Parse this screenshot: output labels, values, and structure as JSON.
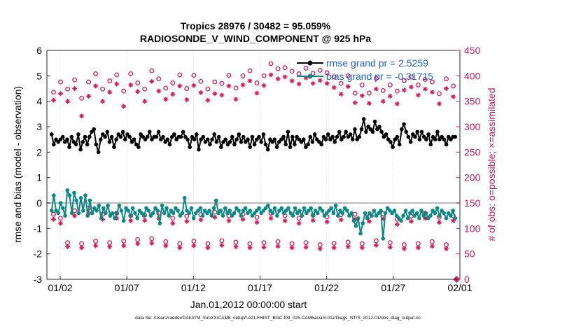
{
  "chart_data": {
    "type": "line",
    "title_line1": "Tropics 28976 / 30482 = 95.059%",
    "title_line2": "RADIOSONDE_V_WIND_COMPONENT @ 925 hPa",
    "xlabel": "Jan.01,2012 00:00:00 start",
    "ylabel_left": "rmse and bias (model - observation)",
    "ylabel_right": "# of obs: o=possible; ×=assimilated",
    "xlim": [
      0.5,
      31.5
    ],
    "ylim_left": [
      -3,
      6
    ],
    "ylim_right": [
      0,
      450
    ],
    "x_ticks": [
      1.5,
      6.5,
      11.5,
      16.5,
      21.5,
      26.5,
      31.5
    ],
    "x_tick_labels": [
      "01/02",
      "01/07",
      "01/12",
      "01/17",
      "01/22",
      "01/27",
      "02/01"
    ],
    "y_ticks_left": [
      -3,
      -2,
      -1,
      0,
      1,
      2,
      3,
      4,
      5,
      6
    ],
    "y_tick_labels_left": [
      "-3",
      "-2",
      "-1",
      "0",
      "1",
      "2",
      "3",
      "4",
      "5",
      "6"
    ],
    "y_ticks_right": [
      0,
      50,
      100,
      150,
      200,
      250,
      300,
      350,
      400,
      450
    ],
    "y_tick_labels_right": [
      "0",
      "50",
      "100",
      "150",
      "200",
      "250",
      "300",
      "350",
      "400",
      "450"
    ],
    "legend": [
      {
        "label": "rmse grand pr = 2.5259",
        "color": "#000000"
      },
      {
        "label": "bias grand pr = -0.31715",
        "color": "#0b8a85"
      }
    ],
    "colors": {
      "rmse": "#000000",
      "bias": "#0b8a85",
      "obs": "#d2195a",
      "text_right": "#c2185b",
      "zero_line": "#bbbbbb"
    },
    "rmse": [
      2.7,
      2.3,
      2.5,
      2.4,
      2.5,
      2.6,
      2.4,
      2.5,
      2.2,
      2.6,
      2.4,
      2.3,
      2.7,
      2.1,
      2.4,
      2.6,
      2.3,
      2.6,
      2.8,
      2.9,
      2.3,
      2.0,
      2.5,
      2.7,
      2.6,
      2.8,
      2.4,
      2.6,
      2.2,
      2.5,
      2.7,
      2.6,
      2.8,
      2.5,
      2.7,
      2.6,
      2.4,
      2.5,
      2.3,
      2.2,
      2.7,
      2.6,
      2.5,
      2.6,
      2.8,
      2.5,
      2.6,
      2.6,
      2.8,
      2.5,
      2.6,
      2.4,
      2.5,
      2.3,
      2.6,
      2.7,
      2.5,
      2.6,
      2.6,
      2.8,
      2.6,
      2.5,
      2.2,
      2.6,
      2.5,
      2.7,
      2.1,
      2.5,
      2.6,
      2.4,
      2.5,
      2.3,
      2.5,
      2.7,
      2.4,
      2.6,
      2.2,
      2.4,
      2.5,
      2.3,
      2.4,
      2.6,
      2.3,
      2.5,
      2.7,
      2.4,
      2.6,
      2.4,
      2.5,
      2.2,
      2.6,
      2.3,
      2.5,
      2.6,
      2.4,
      2.7,
      2.3,
      2.1,
      2.5,
      2.4,
      2.5,
      2.2,
      2.4,
      2.5,
      2.6,
      2.3,
      2.8,
      2.2,
      2.6,
      2.3,
      2.6,
      2.5,
      2.4,
      2.5,
      2.2,
      2.3,
      2.6,
      2.4,
      2.7,
      2.5,
      2.4,
      2.3,
      2.6,
      2.5,
      2.7,
      2.5,
      2.6,
      2.4,
      2.6,
      2.8,
      2.5,
      2.6,
      2.8,
      2.6,
      2.7,
      2.5,
      2.9,
      2.5,
      2.6,
      2.9,
      3.3,
      2.8,
      3.0,
      2.9,
      2.8,
      3.2,
      2.9,
      3.0,
      2.8,
      2.6,
      2.7,
      2.5,
      2.4,
      2.2,
      2.5,
      2.6,
      2.3,
      2.9,
      3.1,
      2.8,
      2.6,
      2.4,
      2.7,
      2.6,
      2.8,
      2.5,
      2.8,
      2.6,
      2.5,
      2.7,
      2.3,
      2.6,
      2.5,
      2.8,
      2.5,
      2.6,
      2.5,
      2.3,
      2.6,
      2.5,
      2.6,
      2.6
    ],
    "bias": [
      -0.3,
      0.3,
      -0.3,
      -0.4,
      0.0,
      -0.2,
      -0.5,
      0.5,
      0.3,
      -0.4,
      0.4,
      0.1,
      -0.4,
      0.2,
      -0.3,
      0.3,
      -0.5,
      0.1,
      -0.4,
      -0.2,
      -0.3,
      -0.1,
      -0.6,
      -0.2,
      -0.4,
      -0.1,
      -0.5,
      -0.4,
      -0.6,
      -0.4,
      -0.1,
      -0.3,
      -0.7,
      -0.2,
      -0.3,
      -0.5,
      -0.2,
      -0.4,
      -0.6,
      -0.3,
      -0.4,
      -0.5,
      -0.2,
      -0.3,
      -0.5,
      -0.4,
      -0.2,
      -0.3,
      -0.8,
      -0.1,
      -0.4,
      -0.2,
      -0.5,
      -0.3,
      -0.4,
      -0.2,
      -0.3,
      -0.5,
      -0.4,
      0.2,
      -0.3,
      -0.4,
      -0.2,
      -0.6,
      -0.4,
      -0.3,
      -0.2,
      -0.5,
      -0.3,
      -0.4,
      -0.3,
      -0.5,
      -0.2,
      0.1,
      -0.4,
      -0.3,
      -0.5,
      -0.2,
      -0.4,
      -0.3,
      -0.5,
      -0.4,
      -0.2,
      -0.3,
      -0.5,
      -0.3,
      -0.2,
      -0.4,
      -0.3,
      -0.5,
      -0.4,
      -0.3,
      -0.2,
      -0.4,
      -0.3,
      -0.2,
      -0.1,
      -0.3,
      -0.4,
      -0.2,
      -0.5,
      -0.3,
      -0.2,
      -0.4,
      -0.3,
      -0.2,
      -0.4,
      -0.5,
      -0.2,
      -0.4,
      -0.3,
      -0.5,
      -0.2,
      -0.4,
      -0.3,
      -0.2,
      -0.5,
      -0.3,
      -0.4,
      -0.2,
      -0.3,
      -0.5,
      -0.4,
      -0.3,
      -0.2,
      -0.4,
      -0.1,
      -0.5,
      -0.3,
      -0.4,
      -0.2,
      -0.3,
      -0.5,
      -0.4,
      -0.7,
      -0.9,
      -0.6,
      -1.2,
      -0.8,
      -0.4,
      -0.6,
      -0.4,
      -0.5,
      -0.3,
      -0.5,
      -0.4,
      -0.3,
      -1.4,
      -0.4,
      -0.2,
      -0.3,
      -0.4,
      -0.3,
      -0.5,
      -0.6,
      -0.7,
      -0.5,
      -0.3,
      -0.6,
      -0.4,
      -0.3,
      -0.5,
      -0.4,
      -0.6,
      -0.3,
      -0.5,
      -0.4,
      -0.6,
      -0.5,
      -0.3,
      -0.4,
      -0.2,
      -0.5,
      -0.3,
      -0.4,
      -0.6,
      -0.4,
      -0.5,
      -0.3,
      -0.6
    ],
    "obs_possible_high": [
      368,
      388,
      374,
      392,
      356,
      388,
      404,
      374,
      390,
      402,
      370,
      404,
      386,
      374,
      410,
      394,
      376,
      386,
      402,
      375,
      401,
      389,
      374,
      388,
      385,
      401,
      376,
      400,
      410,
      386,
      400,
      424,
      414,
      416,
      409,
      404,
      415,
      405,
      411,
      406,
      398,
      385,
      400,
      366,
      382,
      366,
      395,
      371,
      382,
      370,
      391,
      398,
      382,
      393,
      388,
      365,
      394,
      380
    ],
    "obs_assim_high": [
      352,
      365,
      350,
      375,
      321,
      360,
      380,
      350,
      368,
      384,
      340,
      382,
      369,
      350,
      389,
      370,
      354,
      364,
      380,
      353,
      381,
      367,
      352,
      365,
      362,
      380,
      354,
      382,
      390,
      366,
      381,
      402,
      394,
      398,
      390,
      384,
      396,
      385,
      391,
      385,
      377,
      364,
      379,
      347,
      361,
      346,
      374,
      350,
      360,
      345,
      372,
      378,
      362,
      374,
      368,
      345,
      375,
      359
    ],
    "obs_possible_low": [
      128,
      120,
      72,
      135,
      70,
      140,
      75,
      128,
      72,
      130,
      75,
      125,
      78,
      126,
      80,
      130,
      74,
      120,
      70,
      124,
      75,
      127,
      70,
      132,
      76,
      125,
      73,
      128,
      70,
      122,
      72,
      130,
      74,
      125,
      70,
      120,
      72,
      126,
      68,
      123,
      71,
      127,
      73,
      128,
      70,
      124,
      76,
      129,
      72,
      118,
      68,
      124,
      70,
      130,
      74,
      122,
      68,
      125
    ],
    "obs_assim_low": [
      118,
      110,
      64,
      125,
      62,
      130,
      66,
      118,
      64,
      120,
      66,
      115,
      70,
      116,
      71,
      120,
      66,
      110,
      62,
      114,
      66,
      117,
      62,
      122,
      67,
      115,
      64,
      118,
      62,
      112,
      63,
      120,
      65,
      115,
      62,
      110,
      63,
      116,
      60,
      113,
      62,
      117,
      64,
      118,
      62,
      114,
      67,
      119,
      63,
      108,
      60,
      114,
      62,
      120,
      65,
      112,
      60,
      115
    ],
    "highlight_points": [
      {
        "x": 31.25,
        "y": 0
      }
    ]
  },
  "footer": {
    "data_file": "data file: /Users/raeder/DAI/ATM_forcXX/CAM6_setup/f.e21.FHIST_BGC.f09_025.CAM6assim.011/Diags_NTrS_2012-01/obs_diag_output.nc"
  }
}
